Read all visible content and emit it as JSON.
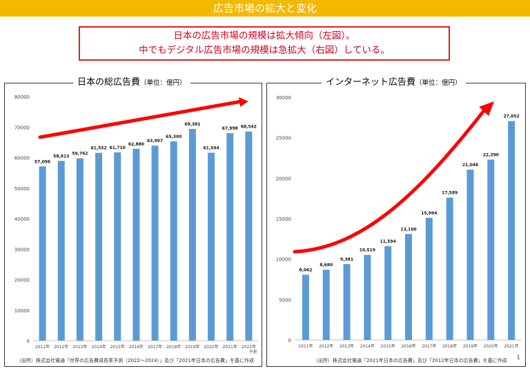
{
  "header": {
    "title": "広告市場の拡大と変化"
  },
  "callout": {
    "line1": "日本の広告市場の規模は拡大傾向（左図）。",
    "line2": "中でもデジタル広告市場の規模は急拡大（右図）している。"
  },
  "left_panel": {
    "title": "日本の総広告費",
    "unit": "（単位：億円）",
    "source": "（出所）株式会社電通「世界の広告費成長率予測（2022～2024）」及び「2021年日本の広告費」を基に作成"
  },
  "right_panel": {
    "title": "インターネット広告費",
    "unit": "（単位：億円）",
    "source": "（出所）株式会社電通「2021年日本の広告費」及び「2012年日本の広告費」を基に作成"
  },
  "page_number": "1",
  "colors": {
    "bar": "#5b9bd5",
    "arrow": "#ff0000",
    "banner": "#f5b800"
  },
  "chart_data": [
    {
      "type": "bar",
      "title": "日本の総広告費（単位：億円）",
      "categories": [
        "2011年",
        "2012年",
        "2013年",
        "2014年",
        "2015年",
        "2016年",
        "2017年",
        "2018年",
        "2019年",
        "2020年",
        "2021年",
        "2022年"
      ],
      "category_notes": [
        "",
        "",
        "",
        "",
        "",
        "",
        "",
        "",
        "",
        "",
        "",
        "予測"
      ],
      "values": [
        57096,
        58913,
        59762,
        61552,
        61710,
        62880,
        63907,
        65300,
        69381,
        61594,
        67998,
        68542
      ],
      "value_labels": [
        "57,096",
        "58,913",
        "59,762",
        "61,552",
        "61,710",
        "62,880",
        "63,907",
        "65,300",
        "69,381",
        "61,594",
        "67,998",
        "68,542"
      ],
      "yticks": [
        0,
        10000,
        20000,
        30000,
        40000,
        50000,
        60000,
        70000,
        80000
      ],
      "ylim": [
        0,
        80000
      ],
      "xlabel": "",
      "ylabel": "",
      "grid": false,
      "trend_arrow": true
    },
    {
      "type": "bar",
      "title": "インターネット広告費（単位：億円）",
      "categories": [
        "2011年",
        "2012年",
        "2013年",
        "2014年",
        "2015年",
        "2016年",
        "2017年",
        "2018年",
        "2019年",
        "2020年",
        "2021年"
      ],
      "values": [
        8062,
        8680,
        9381,
        10519,
        11594,
        13100,
        15094,
        17589,
        21048,
        22290,
        27052
      ],
      "value_labels": [
        "8,062",
        "8,680",
        "9,381",
        "10,519",
        "11,594",
        "13,100",
        "15,094",
        "17,589",
        "21,048",
        "22,290",
        "27,052"
      ],
      "yticks": [
        0,
        5000,
        10000,
        15000,
        20000,
        25000,
        30000
      ],
      "ylim": [
        0,
        30000
      ],
      "xlabel": "",
      "ylabel": "",
      "grid": false,
      "trend_arrow": true
    }
  ]
}
